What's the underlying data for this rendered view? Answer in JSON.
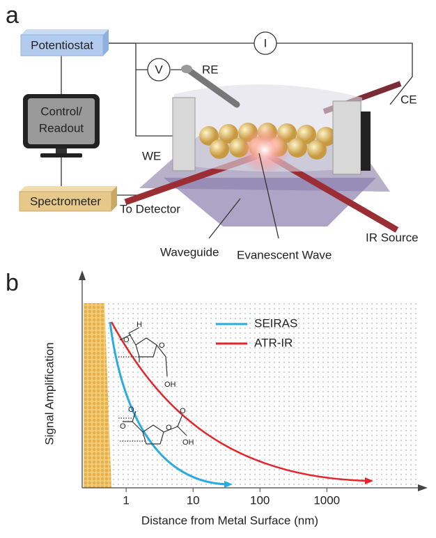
{
  "panel_a": {
    "label": "a",
    "potentiostat": "Potentiostat",
    "control": [
      "Control/",
      "Readout"
    ],
    "spectrometer": "Spectrometer",
    "current": "I",
    "voltage": "V",
    "re": "RE",
    "ce": "CE",
    "we": "WE",
    "to_detector": "To Detector",
    "waveguide": "Waveguide",
    "evanescent": "Evanescent Wave",
    "ir_source": "IR Source"
  },
  "panel_b": {
    "label": "b",
    "y_label": "Signal Amplification",
    "x_label": "Distance from Metal Surface (nm)",
    "x_log": true,
    "xlim": [
      0.22,
      23000
    ],
    "xticks": [
      1,
      10,
      100,
      1000
    ],
    "legend": [
      {
        "name": "SEIRAS",
        "color": "#29abe2"
      },
      {
        "name": "ATR-IR",
        "color": "#e3262a"
      }
    ],
    "molecule_1": [
      "H",
      "O",
      "O",
      "OH"
    ],
    "molecule_2": [
      "O",
      "O",
      "O",
      "O",
      "OH"
    ]
  }
}
